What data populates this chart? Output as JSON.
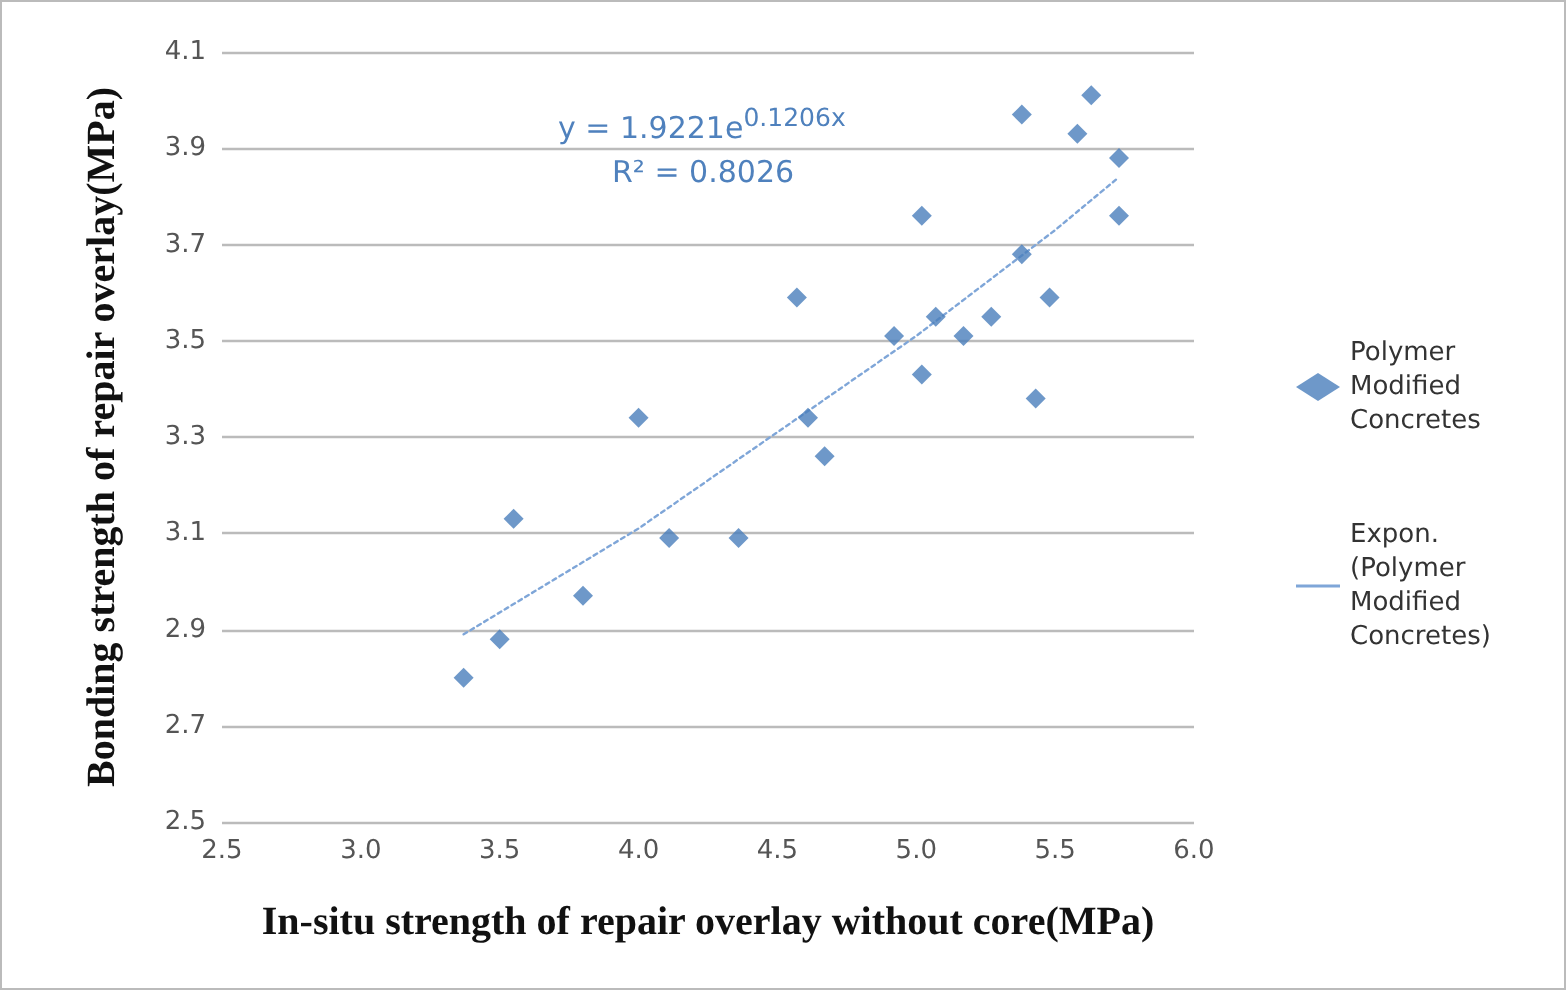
{
  "chart_data": {
    "type": "scatter",
    "xlabel": "In-situ strength of repair overlay without core(MPa)",
    "ylabel": "Bonding strength of repair overlay(MPa)",
    "annotations": [
      "y = 1.9221e$^{0.1206x}$",
      "R² = 0.8026"
    ],
    "series": [
      {
        "name": "Polymer Modified Concretes",
        "color": "#4a7ebb",
        "marker": "diamond",
        "x": [
          3.37,
          3.5,
          3.55,
          3.8,
          4.0,
          4.11,
          4.36,
          4.61,
          4.67,
          4.57,
          5.02,
          4.92,
          5.07,
          5.17,
          5.27,
          5.43,
          5.48,
          5.38,
          5.02,
          5.38,
          5.63,
          5.58,
          5.73,
          5.73
        ],
        "values": [
          2.8,
          2.88,
          3.13,
          2.97,
          3.34,
          3.09,
          3.09,
          3.34,
          3.26,
          3.59,
          3.43,
          3.51,
          3.55,
          3.51,
          3.55,
          3.38,
          3.59,
          3.68,
          3.76,
          3.97,
          4.01,
          3.93,
          3.88,
          3.76
        ]
      },
      {
        "name": "Expon. (Polymer Modified Concretes)",
        "type": "line",
        "color": "#7fa6d8",
        "marker": "none",
        "line_style": "dotted",
        "x": [
          3.37,
          4.0,
          4.5,
          5.0,
          5.5,
          5.73
        ],
        "values": [
          2.89,
          3.11,
          3.31,
          3.51,
          3.73,
          3.84
        ]
      }
    ],
    "xlim": [
      2.5,
      6.0
    ],
    "xticks": [
      2.5,
      {
        "value": 3,
        "label": "3.0"
      },
      3.5,
      {
        "value": 4,
        "label": "4.0"
      },
      4.5,
      {
        "value": 5,
        "label": "5.0"
      },
      5.5,
      {
        "value": 6,
        "label": "6.0"
      }
    ],
    "ylim": [
      2.5,
      4.1
    ],
    "yticks": [
      2.5,
      2.7,
      2.9,
      3.1,
      3.3,
      3.5,
      3.7,
      3.9,
      4.1
    ],
    "grid": "y",
    "legend": "right"
  }
}
